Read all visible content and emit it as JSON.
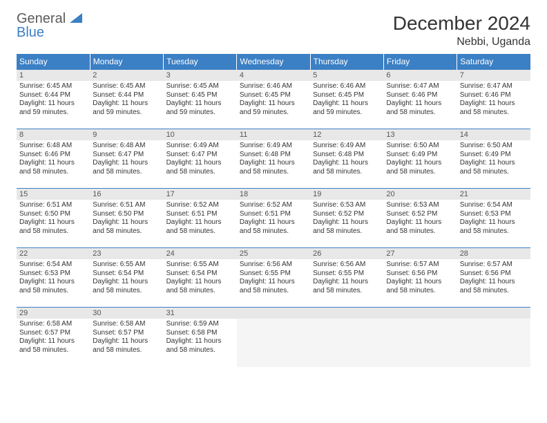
{
  "logo": {
    "word1": "General",
    "word2": "Blue"
  },
  "title": "December 2024",
  "location": "Nebbi, Uganda",
  "colors": {
    "header_bg": "#3b7fc4",
    "header_text": "#ffffff",
    "daynum_bg": "#e8e8e8",
    "text": "#333333",
    "empty_bg": "#f5f5f5",
    "border": "#3b7fc4"
  },
  "day_headers": [
    "Sunday",
    "Monday",
    "Tuesday",
    "Wednesday",
    "Thursday",
    "Friday",
    "Saturday"
  ],
  "weeks": [
    [
      {
        "n": "1",
        "sr": "6:45 AM",
        "ss": "6:44 PM",
        "dl": "11 hours and 59 minutes."
      },
      {
        "n": "2",
        "sr": "6:45 AM",
        "ss": "6:44 PM",
        "dl": "11 hours and 59 minutes."
      },
      {
        "n": "3",
        "sr": "6:45 AM",
        "ss": "6:45 PM",
        "dl": "11 hours and 59 minutes."
      },
      {
        "n": "4",
        "sr": "6:46 AM",
        "ss": "6:45 PM",
        "dl": "11 hours and 59 minutes."
      },
      {
        "n": "5",
        "sr": "6:46 AM",
        "ss": "6:45 PM",
        "dl": "11 hours and 59 minutes."
      },
      {
        "n": "6",
        "sr": "6:47 AM",
        "ss": "6:46 PM",
        "dl": "11 hours and 58 minutes."
      },
      {
        "n": "7",
        "sr": "6:47 AM",
        "ss": "6:46 PM",
        "dl": "11 hours and 58 minutes."
      }
    ],
    [
      {
        "n": "8",
        "sr": "6:48 AM",
        "ss": "6:46 PM",
        "dl": "11 hours and 58 minutes."
      },
      {
        "n": "9",
        "sr": "6:48 AM",
        "ss": "6:47 PM",
        "dl": "11 hours and 58 minutes."
      },
      {
        "n": "10",
        "sr": "6:49 AM",
        "ss": "6:47 PM",
        "dl": "11 hours and 58 minutes."
      },
      {
        "n": "11",
        "sr": "6:49 AM",
        "ss": "6:48 PM",
        "dl": "11 hours and 58 minutes."
      },
      {
        "n": "12",
        "sr": "6:49 AM",
        "ss": "6:48 PM",
        "dl": "11 hours and 58 minutes."
      },
      {
        "n": "13",
        "sr": "6:50 AM",
        "ss": "6:49 PM",
        "dl": "11 hours and 58 minutes."
      },
      {
        "n": "14",
        "sr": "6:50 AM",
        "ss": "6:49 PM",
        "dl": "11 hours and 58 minutes."
      }
    ],
    [
      {
        "n": "15",
        "sr": "6:51 AM",
        "ss": "6:50 PM",
        "dl": "11 hours and 58 minutes."
      },
      {
        "n": "16",
        "sr": "6:51 AM",
        "ss": "6:50 PM",
        "dl": "11 hours and 58 minutes."
      },
      {
        "n": "17",
        "sr": "6:52 AM",
        "ss": "6:51 PM",
        "dl": "11 hours and 58 minutes."
      },
      {
        "n": "18",
        "sr": "6:52 AM",
        "ss": "6:51 PM",
        "dl": "11 hours and 58 minutes."
      },
      {
        "n": "19",
        "sr": "6:53 AM",
        "ss": "6:52 PM",
        "dl": "11 hours and 58 minutes."
      },
      {
        "n": "20",
        "sr": "6:53 AM",
        "ss": "6:52 PM",
        "dl": "11 hours and 58 minutes."
      },
      {
        "n": "21",
        "sr": "6:54 AM",
        "ss": "6:53 PM",
        "dl": "11 hours and 58 minutes."
      }
    ],
    [
      {
        "n": "22",
        "sr": "6:54 AM",
        "ss": "6:53 PM",
        "dl": "11 hours and 58 minutes."
      },
      {
        "n": "23",
        "sr": "6:55 AM",
        "ss": "6:54 PM",
        "dl": "11 hours and 58 minutes."
      },
      {
        "n": "24",
        "sr": "6:55 AM",
        "ss": "6:54 PM",
        "dl": "11 hours and 58 minutes."
      },
      {
        "n": "25",
        "sr": "6:56 AM",
        "ss": "6:55 PM",
        "dl": "11 hours and 58 minutes."
      },
      {
        "n": "26",
        "sr": "6:56 AM",
        "ss": "6:55 PM",
        "dl": "11 hours and 58 minutes."
      },
      {
        "n": "27",
        "sr": "6:57 AM",
        "ss": "6:56 PM",
        "dl": "11 hours and 58 minutes."
      },
      {
        "n": "28",
        "sr": "6:57 AM",
        "ss": "6:56 PM",
        "dl": "11 hours and 58 minutes."
      }
    ],
    [
      {
        "n": "29",
        "sr": "6:58 AM",
        "ss": "6:57 PM",
        "dl": "11 hours and 58 minutes."
      },
      {
        "n": "30",
        "sr": "6:58 AM",
        "ss": "6:57 PM",
        "dl": "11 hours and 58 minutes."
      },
      {
        "n": "31",
        "sr": "6:59 AM",
        "ss": "6:58 PM",
        "dl": "11 hours and 58 minutes."
      },
      null,
      null,
      null,
      null
    ]
  ],
  "labels": {
    "sunrise": "Sunrise:",
    "sunset": "Sunset:",
    "daylight": "Daylight:"
  }
}
